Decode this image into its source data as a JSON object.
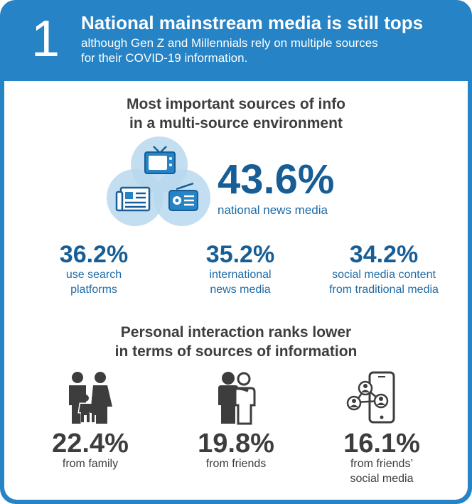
{
  "header": {
    "number": "1",
    "title": "National mainstream media is still tops",
    "subtitle_line1": "although Gen Z and Millennials rely on multiple sources",
    "subtitle_line2": "for their COVID-19 information."
  },
  "section1": {
    "heading_line1": "Most important sources of info",
    "heading_line2": "in a multi-source environment",
    "main_stat": {
      "value": "43.6%",
      "label": "national news media"
    },
    "stats": [
      {
        "value": "36.2%",
        "label_line1": "use search",
        "label_line2": "platforms"
      },
      {
        "value": "35.2%",
        "label_line1": "international",
        "label_line2": "news media"
      },
      {
        "value": "34.2%",
        "label_line1": "social media content",
        "label_line2": "from traditional media"
      }
    ]
  },
  "section2": {
    "heading_line1": "Personal interaction ranks lower",
    "heading_line2": "in terms of sources of information",
    "stats": [
      {
        "value": "22.4%",
        "label_line1": "from family",
        "label_line2": ""
      },
      {
        "value": "19.8%",
        "label_line1": "from friends",
        "label_line2": ""
      },
      {
        "value": "16.1%",
        "label_line1": "from friends’",
        "label_line2": "social media"
      }
    ]
  },
  "colors": {
    "brand_blue": "#2583c6",
    "dark_blue": "#175e96",
    "light_blue_circle": "#b9d8ef",
    "gray_text": "#3d3d3d"
  },
  "icons": [
    "tv-icon",
    "newspaper-icon",
    "radio-icon",
    "family-icon",
    "friends-icon",
    "phone-network-icon"
  ]
}
